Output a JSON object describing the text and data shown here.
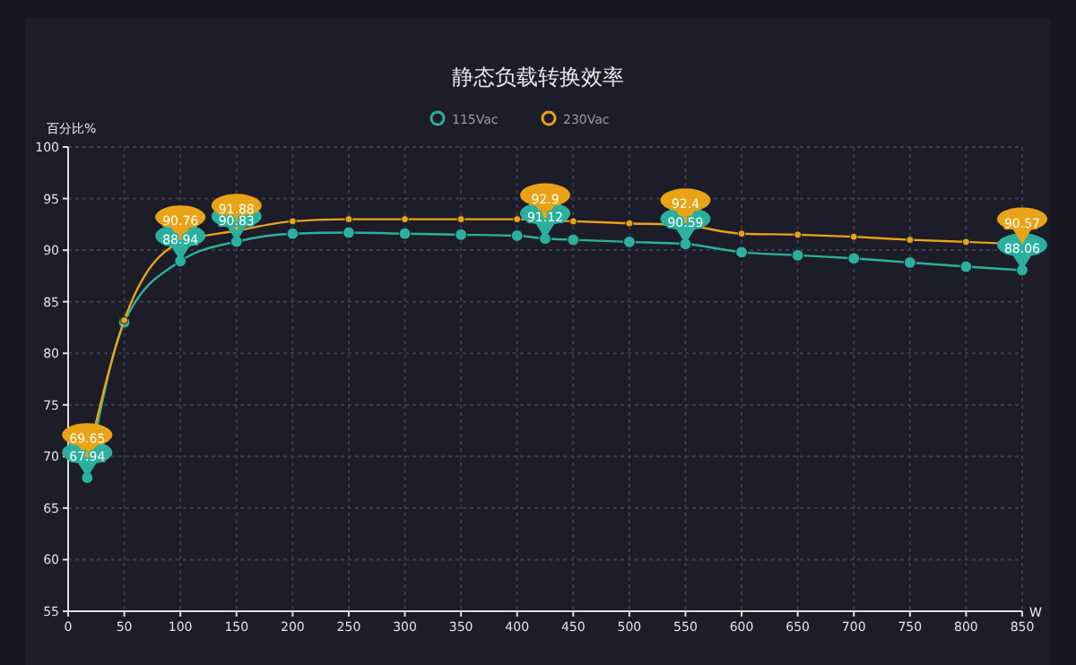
{
  "chart_data": {
    "type": "line",
    "title": "静态负载转换效率",
    "ylabel": "百分比%",
    "xlabel": "W",
    "x": [
      17,
      50,
      100,
      150,
      200,
      250,
      300,
      350,
      400,
      425,
      450,
      500,
      550,
      600,
      650,
      700,
      750,
      800,
      850
    ],
    "series": [
      {
        "name": "115Vac",
        "color": "#2bb0a0",
        "values": [
          67.94,
          83,
          88.94,
          90.83,
          91.6,
          91.7,
          91.6,
          91.5,
          91.4,
          91.12,
          91.0,
          90.8,
          90.59,
          89.8,
          89.5,
          89.2,
          88.8,
          88.4,
          88.06
        ],
        "value_labels": [
          "67.94",
          null,
          "88.94",
          "90.83",
          null,
          null,
          null,
          null,
          null,
          "91.12",
          null,
          null,
          "90.59",
          null,
          null,
          null,
          null,
          null,
          "88.06"
        ]
      },
      {
        "name": "230Vac",
        "color": "#e8a317",
        "values": [
          69.65,
          83.2,
          90.76,
          91.88,
          92.8,
          93.0,
          93.0,
          93.0,
          93.0,
          92.9,
          92.8,
          92.6,
          92.4,
          91.6,
          91.5,
          91.3,
          91.0,
          90.8,
          90.57
        ],
        "value_labels": [
          "69.65",
          null,
          "90.76",
          "91.88",
          null,
          null,
          null,
          null,
          null,
          "92.9",
          null,
          null,
          "92.4",
          null,
          null,
          null,
          null,
          null,
          "90.57"
        ]
      }
    ],
    "xlim": [
      0,
      850
    ],
    "xticks": [
      0,
      50,
      100,
      150,
      200,
      250,
      300,
      350,
      400,
      450,
      500,
      550,
      600,
      650,
      700,
      750,
      800,
      850
    ],
    "ylim": [
      55,
      100
    ],
    "yticks": [
      55,
      60,
      65,
      70,
      75,
      80,
      85,
      90,
      95,
      100
    ],
    "grid": true,
    "legend": "top",
    "marker": "circle",
    "line_style": "solid"
  }
}
